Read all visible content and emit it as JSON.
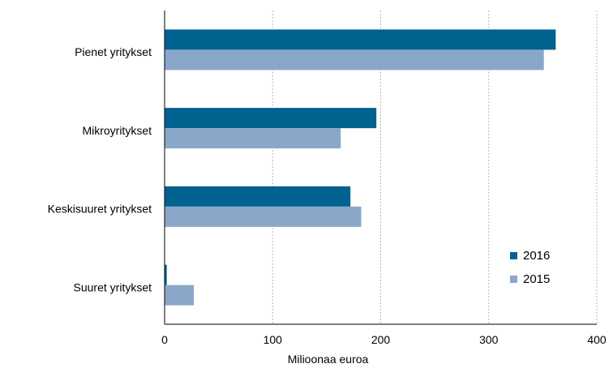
{
  "chart_data": {
    "type": "bar",
    "orientation": "horizontal",
    "categories": [
      "Pienet yritykset",
      "Mikroyritykset",
      "Keskisuuret yritykset",
      "Suuret yritykset"
    ],
    "series": [
      {
        "name": "2016",
        "color": "#00628f",
        "values": [
          362,
          196,
          172,
          2
        ]
      },
      {
        "name": "2015",
        "color": "#8aa7c9",
        "values": [
          351,
          163,
          182,
          27
        ]
      }
    ],
    "xlabel": "Milioonaa euroa",
    "ylabel": "",
    "xlim": [
      0,
      400
    ],
    "xticks": [
      "0",
      "100",
      "200",
      "300",
      "400"
    ],
    "grid": "vertical-dotted",
    "legend_position": "bottom-right"
  }
}
